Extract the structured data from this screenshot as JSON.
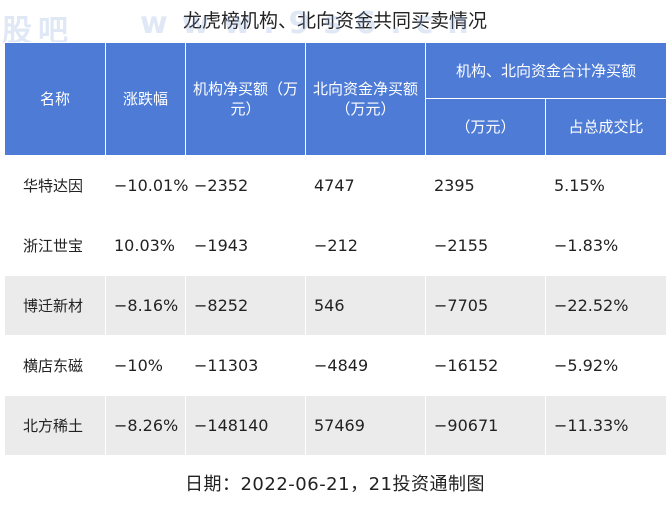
{
  "title": "龙虎榜机构、北向资金共同买卖情况",
  "watermark": {
    "left": "股吧",
    "right": "www.9s6.cn"
  },
  "table": {
    "headers": {
      "name": "名称",
      "change": "涨跌幅",
      "inst_net": "机构净买额（万元）",
      "north_net": "北向资金净买额（万元）",
      "combined_group": "机构、北向资金合计净买额",
      "combined_value": "（万元）",
      "combined_ratio": "占总成交比"
    },
    "rows": [
      {
        "name": "华特达因",
        "change": "−10.01%",
        "inst_net": "−2352",
        "north_net": "4747",
        "combined": "2395",
        "ratio": "5.15%"
      },
      {
        "name": "浙江世宝",
        "change": "10.03%",
        "inst_net": "−1943",
        "north_net": "−212",
        "combined": "−2155",
        "ratio": "−1.83%"
      },
      {
        "name": "博迁新材",
        "change": "−8.16%",
        "inst_net": "−8252",
        "north_net": "546",
        "combined": "−7705",
        "ratio": "−22.52%"
      },
      {
        "name": "横店东磁",
        "change": "−10%",
        "inst_net": "−11303",
        "north_net": "−4849",
        "combined": "−16152",
        "ratio": "−5.92%"
      },
      {
        "name": "北方稀土",
        "change": "−8.26%",
        "inst_net": "−148140",
        "north_net": "57469",
        "combined": "−90671",
        "ratio": "−11.33%"
      }
    ]
  },
  "footer": "日期：2022-06-21，21投资通制图",
  "colors": {
    "header_bg": "#4d7bd6",
    "row_alt_bg": "#ebebeb"
  }
}
